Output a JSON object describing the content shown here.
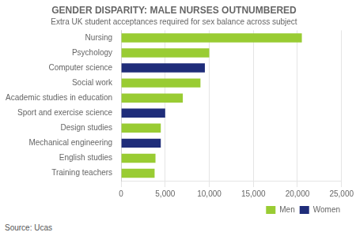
{
  "chart_data": {
    "type": "bar",
    "orientation": "horizontal",
    "title": "GENDER DISPARITY: MALE NURSES OUTNUMBERED",
    "subtitle": "Extra UK student acceptances required for sex balance across subject",
    "annotations": [
      "Source: Ucas"
    ],
    "categories": [
      "Training teachers",
      "English studies",
      "Mechanical engineering",
      "Design studies",
      "Sport and exercise science",
      "Academic studies in education",
      "Social work",
      "Computer science",
      "Psychology",
      "Nursing"
    ],
    "series": [
      {
        "name": "Men",
        "color": "#99cc33",
        "values": [
          3800,
          3900,
          0,
          4500,
          0,
          7000,
          9000,
          0,
          10000,
          20500
        ]
      },
      {
        "name": "Women",
        "color": "#1f2d7a",
        "values": [
          0,
          0,
          4500,
          0,
          5000,
          0,
          0,
          9500,
          0,
          0
        ]
      }
    ],
    "xlim": [
      0,
      25000
    ],
    "xticks": [
      0,
      {
        "value": 5000,
        "label": "5,000"
      },
      {
        "value": 10000,
        "label": "10,000"
      },
      {
        "value": 15000,
        "label": "15,000"
      },
      {
        "value": 20000,
        "label": "20,000"
      },
      {
        "value": 25000,
        "label": "25,000"
      }
    ],
    "grid": true,
    "legend": "lower right"
  }
}
